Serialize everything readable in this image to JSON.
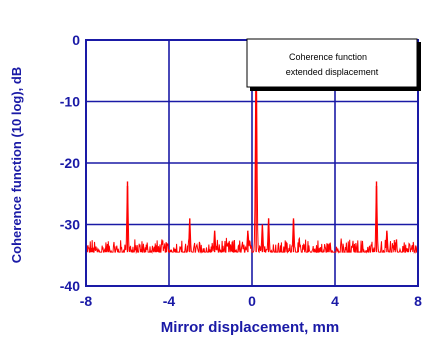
{
  "chart_data": {
    "type": "line",
    "title": "",
    "xlabel": "Mirror displacement, mm",
    "ylabel": "Coherence function (10 log), dB",
    "xlim": [
      -8,
      8
    ],
    "ylim": [
      -40,
      0
    ],
    "x_ticks": [
      -8,
      -4,
      0,
      4,
      8
    ],
    "y_ticks": [
      0,
      -10,
      -20,
      -30,
      -40
    ],
    "x_tick_labels": [
      "-8",
      "-4",
      "0",
      "4",
      "8"
    ],
    "y_tick_labels": [
      "0",
      "-10",
      "-20",
      "-30",
      "-40"
    ],
    "grid": true,
    "legend": {
      "placement": "top-right",
      "lines": [
        "Coherence function",
        "extended displacement"
      ]
    },
    "colors": {
      "axis": "#1a1aa6",
      "grid": "#1a1aa6",
      "series": "#ff0000"
    },
    "series": [
      {
        "baseline": -34.5,
        "peaks": [
          {
            "x": -6.0,
            "y": -23
          },
          {
            "x": -3.0,
            "y": -29
          },
          {
            "x": -1.8,
            "y": -31
          },
          {
            "x": -0.2,
            "y": -31
          },
          {
            "x": 0.2,
            "y": 0
          },
          {
            "x": 0.5,
            "y": -30
          },
          {
            "x": 0.8,
            "y": -29
          },
          {
            "x": 2.0,
            "y": -29
          },
          {
            "x": 6.0,
            "y": -23
          },
          {
            "x": 6.5,
            "y": -31
          }
        ]
      }
    ]
  }
}
